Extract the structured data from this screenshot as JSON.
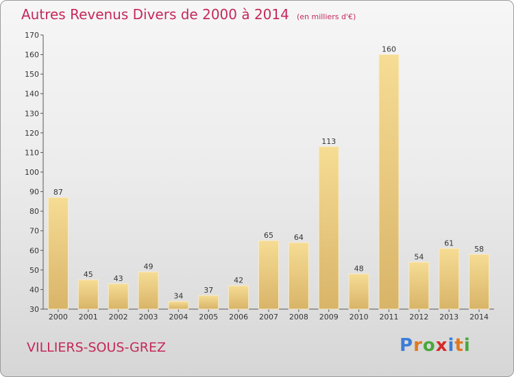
{
  "chart_data": {
    "type": "bar",
    "title": "Autres Revenus Divers de 2000 à 2014",
    "subtitle": "(en milliers d'€)",
    "categories": [
      "2000",
      "2001",
      "2002",
      "2003",
      "2004",
      "2005",
      "2006",
      "2007",
      "2008",
      "2009",
      "2010",
      "2011",
      "2012",
      "2013",
      "2014"
    ],
    "values": [
      87,
      45,
      43,
      49,
      34,
      37,
      42,
      65,
      64,
      113,
      48,
      160,
      54,
      61,
      58
    ],
    "ylim": [
      30,
      170
    ],
    "yticks": [
      30,
      40,
      50,
      60,
      70,
      80,
      90,
      100,
      110,
      120,
      130,
      140,
      150,
      160,
      170
    ],
    "grid": false,
    "bar_color": "#f0d28a"
  },
  "footer": {
    "town": "VILLIERS-SOUS-GREZ",
    "logo": "Proxiti"
  },
  "colors": {
    "title": "#c4285a",
    "logo": [
      "#3b7dd8",
      "#e0781e",
      "#49a83c",
      "#d62a2a",
      "#3b7dd8",
      "#e0781e",
      "#49a83c"
    ]
  }
}
